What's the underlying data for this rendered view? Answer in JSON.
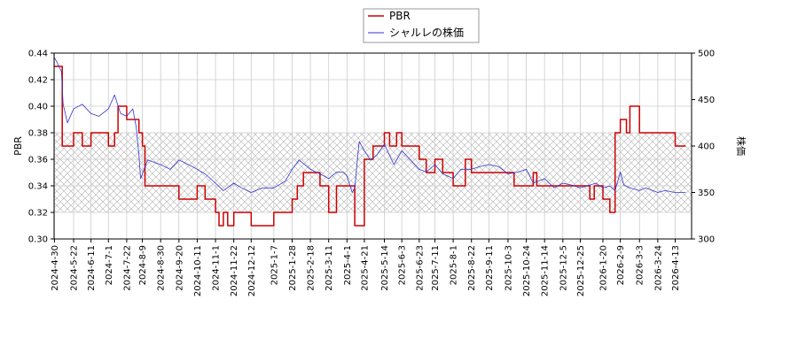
{
  "chart_data": {
    "type": "line",
    "legend_placement": "top-center",
    "grid": true,
    "band": {
      "y_from": 0.32,
      "y_to": 0.38,
      "pattern": "crosshatch"
    },
    "x_ticks": [
      "2024-4-30",
      "2024-5-22",
      "2024-6-11",
      "2024-7-1",
      "2024-7-22",
      "2024-8-9",
      "2024-8-30",
      "2024-9-20",
      "2024-10-11",
      "2024-11-1",
      "2024-11-22",
      "2024-12-12",
      "2025-1-7",
      "2025-1-28",
      "2025-2-18",
      "2025-3-11",
      "2025-4-1",
      "2025-4-21",
      "2025-5-14",
      "2025-6-3",
      "2025-6-23",
      "2025-7-11",
      "2025-8-1",
      "2025-8-22",
      "2025-9-11",
      "2025-10-3",
      "2025-10-24",
      "2025-11-14",
      "2025-12-5",
      "2025-12-25",
      "2026-1-20",
      "2026-2-9",
      "2026-3-3",
      "2026-3-24",
      "2026-4-13"
    ],
    "left_axis": {
      "label": "PBR",
      "ylim": [
        0.3,
        0.44
      ],
      "ticks": [
        "0.30",
        "0.32",
        "0.34",
        "0.36",
        "0.38",
        "0.40",
        "0.42",
        "0.44"
      ]
    },
    "right_axis": {
      "label": "株価",
      "ylim": [
        300,
        500
      ],
      "ticks": [
        "300",
        "350",
        "400",
        "450",
        "500"
      ]
    },
    "series": [
      {
        "name": "PBR",
        "color": "#cc0000",
        "axis": "left",
        "x": [
          "2024-4-30",
          "2024-5-8",
          "2024-5-9",
          "2024-5-22",
          "2024-6-1",
          "2024-6-11",
          "2024-6-20",
          "2024-7-1",
          "2024-7-8",
          "2024-7-12",
          "2024-7-22",
          "2024-8-5",
          "2024-8-7",
          "2024-8-9",
          "2024-8-12",
          "2024-8-30",
          "2024-9-5",
          "2024-9-20",
          "2024-10-5",
          "2024-10-11",
          "2024-10-20",
          "2024-10-28",
          "2024-11-1",
          "2024-11-5",
          "2024-11-10",
          "2024-11-15",
          "2024-11-22",
          "2024-12-1",
          "2024-12-12",
          "2024-12-20",
          "2025-1-7",
          "2025-1-15",
          "2025-1-28",
          "2025-2-3",
          "2025-2-10",
          "2025-2-18",
          "2025-3-1",
          "2025-3-11",
          "2025-3-20",
          "2025-4-1",
          "2025-4-7",
          "2025-4-10",
          "2025-4-21",
          "2025-4-28",
          "2025-5-1",
          "2025-5-14",
          "2025-5-20",
          "2025-5-28",
          "2025-6-3",
          "2025-6-10",
          "2025-6-23",
          "2025-7-1",
          "2025-7-11",
          "2025-7-20",
          "2025-8-1",
          "2025-8-8",
          "2025-8-15",
          "2025-8-22",
          "2025-9-11",
          "2025-10-3",
          "2025-10-10",
          "2025-10-24",
          "2025-11-1",
          "2025-11-5",
          "2025-11-14",
          "2025-11-20",
          "2025-12-5",
          "2025-12-25",
          "2026-1-5",
          "2026-1-10",
          "2026-1-20",
          "2026-1-28",
          "2026-2-3",
          "2026-2-9",
          "2026-2-16",
          "2026-2-20",
          "2026-3-3",
          "2026-3-10",
          "2026-3-24",
          "2026-4-13",
          "2026-4-25"
        ],
        "values": [
          0.43,
          0.43,
          0.37,
          0.38,
          0.37,
          0.38,
          0.38,
          0.37,
          0.38,
          0.4,
          0.39,
          0.38,
          0.38,
          0.37,
          0.34,
          0.34,
          0.34,
          0.33,
          0.33,
          0.34,
          0.33,
          0.33,
          0.32,
          0.31,
          0.32,
          0.31,
          0.32,
          0.32,
          0.31,
          0.31,
          0.32,
          0.32,
          0.33,
          0.34,
          0.35,
          0.35,
          0.34,
          0.32,
          0.34,
          0.34,
          0.34,
          0.31,
          0.36,
          0.36,
          0.37,
          0.38,
          0.37,
          0.38,
          0.37,
          0.37,
          0.36,
          0.35,
          0.36,
          0.35,
          0.34,
          0.34,
          0.36,
          0.35,
          0.35,
          0.35,
          0.34,
          0.34,
          0.35,
          0.34,
          0.34,
          0.34,
          0.34,
          0.34,
          0.33,
          0.34,
          0.33,
          0.32,
          0.38,
          0.39,
          0.38,
          0.4,
          0.38,
          0.38,
          0.38,
          0.37,
          0.37
        ]
      },
      {
        "name": "シャルレの株価",
        "color": "#3333cc",
        "axis": "right",
        "x": [
          "2024-4-30",
          "2024-5-3",
          "2024-5-8",
          "2024-5-10",
          "2024-5-15",
          "2024-5-22",
          "2024-6-1",
          "2024-6-11",
          "2024-6-20",
          "2024-7-1",
          "2024-7-8",
          "2024-7-15",
          "2024-7-22",
          "2024-7-29",
          "2024-8-2",
          "2024-8-5",
          "2024-8-7",
          "2024-8-9",
          "2024-8-15",
          "2024-8-30",
          "2024-9-10",
          "2024-9-20",
          "2024-10-1",
          "2024-10-11",
          "2024-10-20",
          "2024-11-1",
          "2024-11-10",
          "2024-11-22",
          "2024-12-1",
          "2024-12-12",
          "2024-12-25",
          "2025-1-7",
          "2025-1-20",
          "2025-1-28",
          "2025-2-5",
          "2025-2-18",
          "2025-3-1",
          "2025-3-11",
          "2025-3-20",
          "2025-3-28",
          "2025-4-1",
          "2025-4-7",
          "2025-4-10",
          "2025-4-15",
          "2025-4-21",
          "2025-4-28",
          "2025-5-5",
          "2025-5-14",
          "2025-5-25",
          "2025-6-3",
          "2025-6-13",
          "2025-6-23",
          "2025-7-1",
          "2025-7-11",
          "2025-7-20",
          "2025-8-1",
          "2025-8-10",
          "2025-8-22",
          "2025-9-1",
          "2025-9-11",
          "2025-9-22",
          "2025-10-3",
          "2025-10-15",
          "2025-10-24",
          "2025-11-1",
          "2025-11-14",
          "2025-11-25",
          "2025-12-5",
          "2025-12-15",
          "2025-12-25",
          "2026-1-5",
          "2026-1-12",
          "2026-1-20",
          "2026-1-28",
          "2026-2-3",
          "2026-2-9",
          "2026-2-13",
          "2026-2-20",
          "2026-3-3",
          "2026-3-10",
          "2026-3-24",
          "2026-4-1",
          "2026-4-13",
          "2026-4-25"
        ],
        "values": [
          495,
          490,
          480,
          445,
          425,
          440,
          445,
          435,
          432,
          440,
          455,
          435,
          432,
          440,
          420,
          390,
          365,
          370,
          385,
          380,
          375,
          385,
          380,
          375,
          370,
          360,
          352,
          360,
          355,
          350,
          355,
          355,
          362,
          375,
          385,
          375,
          370,
          365,
          372,
          372,
          368,
          350,
          355,
          405,
          395,
          385,
          390,
          402,
          380,
          395,
          385,
          375,
          372,
          380,
          370,
          365,
          375,
          375,
          378,
          380,
          378,
          370,
          372,
          375,
          360,
          365,
          355,
          360,
          358,
          355,
          358,
          360,
          355,
          357,
          352,
          372,
          358,
          355,
          352,
          355,
          350,
          352,
          350,
          350
        ]
      }
    ]
  },
  "legend": {
    "items": [
      "PBR",
      "シャルレの株価"
    ]
  }
}
